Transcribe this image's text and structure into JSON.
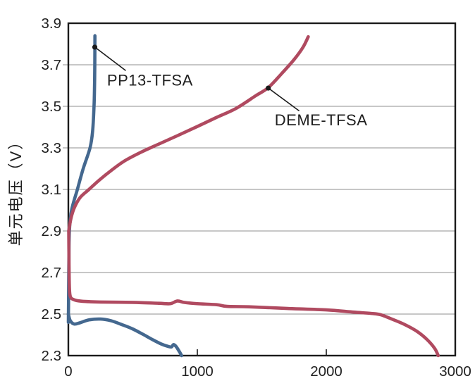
{
  "figure": {
    "background": "#ffffff",
    "border_color": "#1a1a1a",
    "grid_color": "#8f8f8f",
    "text_color": "#1f1f1f"
  },
  "chart_data": {
    "type": "line",
    "title": "",
    "xlabel": "",
    "ylabel": "单元电压（V）",
    "xlim": [
      0,
      3000
    ],
    "ylim": [
      2.3,
      3.9
    ],
    "xticks": [
      0,
      1000,
      2000,
      3000
    ],
    "yticks": [
      2.3,
      2.5,
      2.7,
      2.9,
      3.1,
      3.3,
      3.5,
      3.7,
      3.9
    ],
    "grid": "horizontal",
    "legend": "inline-annotations",
    "series": [
      {
        "name": "PP13-TFSA",
        "color": "#44688f",
        "branches": {
          "charge": [
            [
              0,
              2.46
            ],
            [
              2,
              2.6
            ],
            [
              4,
              2.75
            ],
            [
              8,
              2.9
            ],
            [
              25,
              3.0
            ],
            [
              70,
              3.1
            ],
            [
              115,
              3.2
            ],
            [
              168,
              3.3
            ],
            [
              188,
              3.38
            ],
            [
              199,
              3.5
            ],
            [
              203,
              3.6
            ],
            [
              205,
              3.7
            ],
            [
              206,
              3.84
            ]
          ],
          "discharge": [
            [
              0,
              2.5
            ],
            [
              15,
              2.468
            ],
            [
              45,
              2.452
            ],
            [
              90,
              2.458
            ],
            [
              160,
              2.472
            ],
            [
              250,
              2.476
            ],
            [
              330,
              2.468
            ],
            [
              420,
              2.448
            ],
            [
              500,
              2.428
            ],
            [
              580,
              2.402
            ],
            [
              650,
              2.378
            ],
            [
              720,
              2.356
            ],
            [
              775,
              2.344
            ],
            [
              800,
              2.342
            ],
            [
              815,
              2.353
            ],
            [
              835,
              2.344
            ],
            [
              860,
              2.32
            ],
            [
              878,
              2.3
            ]
          ]
        }
      },
      {
        "name": "DEME-TFSA",
        "color": "#b04a60",
        "branches": {
          "charge": [
            [
              3,
              2.9
            ],
            [
              20,
              2.96
            ],
            [
              45,
              3.01
            ],
            [
              90,
              3.06
            ],
            [
              160,
              3.1
            ],
            [
              240,
              3.145
            ],
            [
              330,
              3.19
            ],
            [
              430,
              3.235
            ],
            [
              560,
              3.278
            ],
            [
              700,
              3.318
            ],
            [
              850,
              3.36
            ],
            [
              1000,
              3.403
            ],
            [
              1150,
              3.447
            ],
            [
              1300,
              3.49
            ],
            [
              1450,
              3.55
            ],
            [
              1550,
              3.59
            ],
            [
              1650,
              3.655
            ],
            [
              1750,
              3.725
            ],
            [
              1820,
              3.785
            ],
            [
              1860,
              3.835
            ]
          ],
          "discharge": [
            [
              3,
              2.9
            ],
            [
              5,
              2.75
            ],
            [
              8,
              2.63
            ],
            [
              15,
              2.585
            ],
            [
              40,
              2.57
            ],
            [
              100,
              2.562
            ],
            [
              250,
              2.558
            ],
            [
              500,
              2.556
            ],
            [
              700,
              2.552
            ],
            [
              790,
              2.55
            ],
            [
              845,
              2.563
            ],
            [
              900,
              2.556
            ],
            [
              1000,
              2.55
            ],
            [
              1150,
              2.545
            ],
            [
              1230,
              2.537
            ],
            [
              1400,
              2.535
            ],
            [
              1700,
              2.527
            ],
            [
              2000,
              2.52
            ],
            [
              2200,
              2.51
            ],
            [
              2350,
              2.503
            ],
            [
              2420,
              2.497
            ],
            [
              2500,
              2.478
            ],
            [
              2600,
              2.452
            ],
            [
              2700,
              2.418
            ],
            [
              2780,
              2.378
            ],
            [
              2840,
              2.335
            ],
            [
              2868,
              2.3
            ]
          ]
        }
      }
    ],
    "annotations": [
      {
        "label": "PP13-TFSA",
        "series": "PP13-TFSA",
        "dot": [
          205,
          3.785
        ],
        "line_end": [
          445,
          3.672
        ],
        "label_pos": [
          300,
          3.655
        ]
      },
      {
        "label": "DEME-TFSA",
        "series": "DEME-TFSA",
        "dot": [
          1550,
          3.588
        ],
        "line_end": [
          1790,
          3.478
        ],
        "label_pos": [
          1600,
          3.462
        ]
      }
    ]
  }
}
